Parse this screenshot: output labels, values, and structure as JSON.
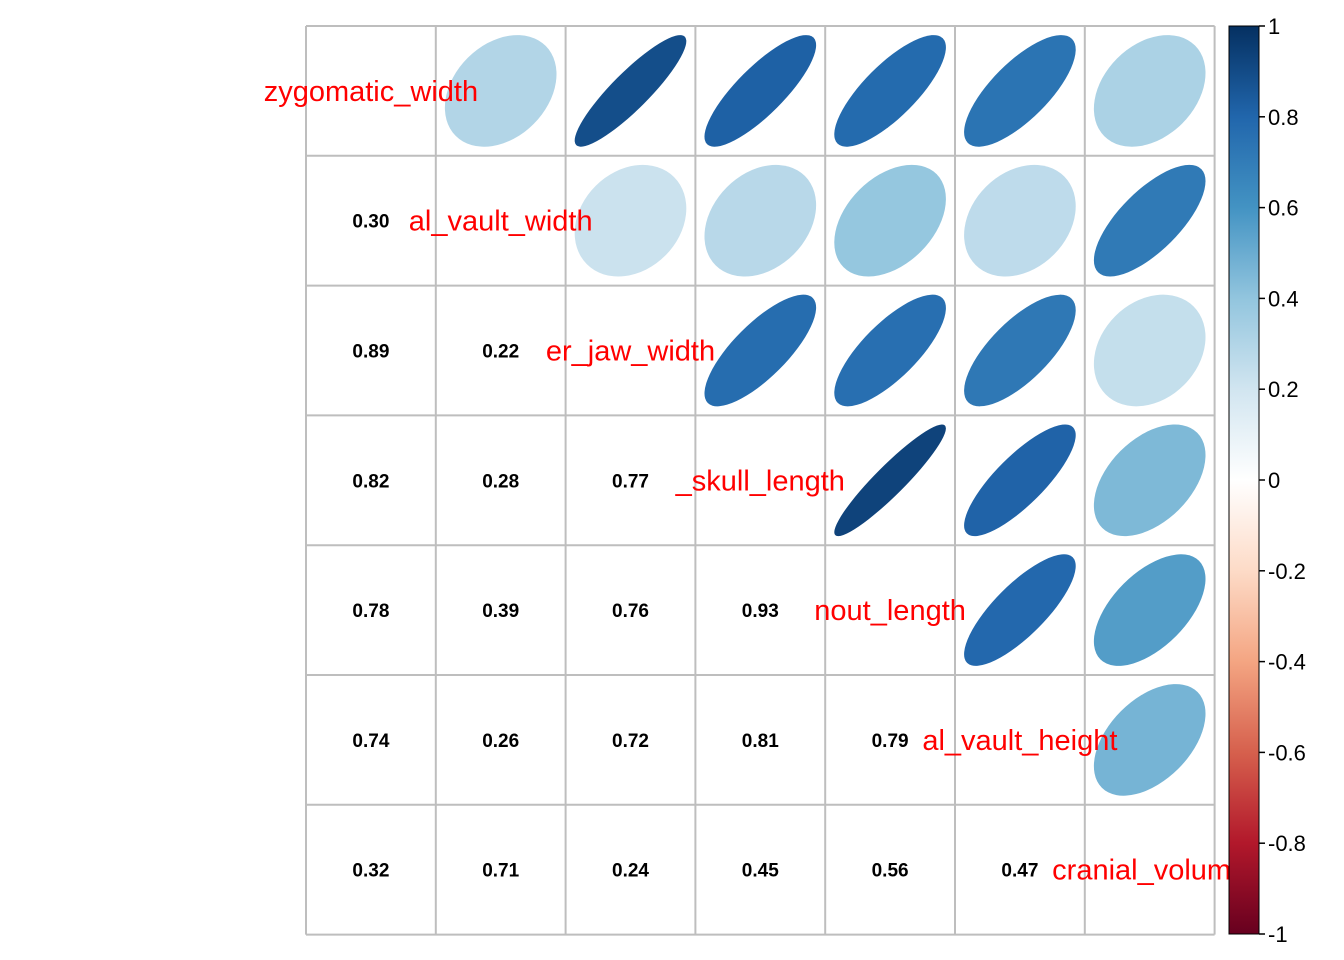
{
  "chart_data": {
    "type": "heatmap",
    "style": "corrplot mixed: ellipses upper triangle, numbers lower triangle",
    "variables": [
      "zygomatic_width",
      "al_vault_width",
      "er_jaw_width",
      "_skull_length",
      "nout_length",
      "al_vault_height",
      "cranial_volume"
    ],
    "matrix": [
      [
        1.0,
        0.3,
        0.89,
        0.82,
        0.78,
        0.74,
        0.32
      ],
      [
        0.3,
        1.0,
        0.22,
        0.28,
        0.39,
        0.26,
        0.71
      ],
      [
        0.89,
        0.22,
        1.0,
        0.77,
        0.76,
        0.72,
        0.24
      ],
      [
        0.82,
        0.28,
        0.77,
        1.0,
        0.93,
        0.81,
        0.45
      ],
      [
        0.78,
        0.39,
        0.76,
        0.93,
        1.0,
        0.79,
        0.56
      ],
      [
        0.74,
        0.26,
        0.72,
        0.81,
        0.79,
        1.0,
        0.47
      ],
      [
        0.32,
        0.71,
        0.24,
        0.45,
        0.56,
        0.47,
        1.0
      ]
    ],
    "lower_labels": [
      [
        "0.30"
      ],
      [
        "0.89",
        "0.22"
      ],
      [
        "0.82",
        "0.28",
        "0.77"
      ],
      [
        "0.78",
        "0.39",
        "0.76",
        "0.93"
      ],
      [
        "0.74",
        "0.26",
        "0.72",
        "0.81",
        "0.79"
      ],
      [
        "0.32",
        "0.71",
        "0.24",
        "0.45",
        "0.56",
        "0.47"
      ]
    ],
    "colorbar": {
      "range": [
        -1,
        1
      ],
      "tick_labels": [
        "1",
        "0.8",
        "0.6",
        "0.4",
        "0.2",
        "0",
        "-0.2",
        "-0.4",
        "-0.6",
        "-0.8",
        "-1"
      ],
      "position": "right"
    },
    "colors": {
      "positive_max": "#053061",
      "negative_max": "#67001f",
      "zero": "#ffffff",
      "label_color": "#ff0000",
      "grid_color": "#bebebe"
    }
  }
}
